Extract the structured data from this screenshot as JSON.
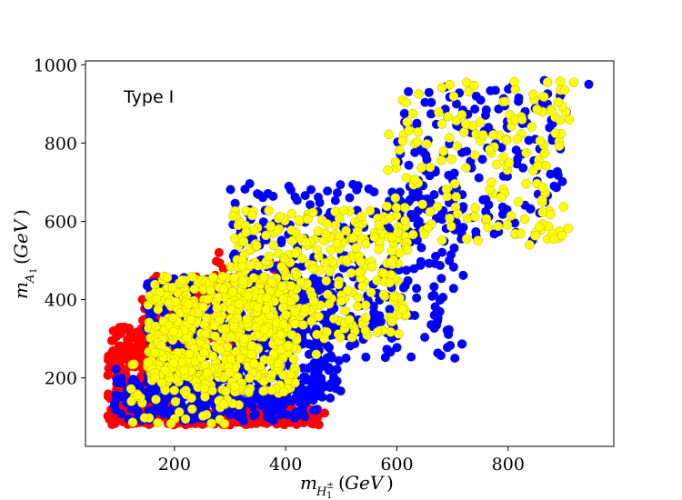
{
  "chart_data": {
    "type": "scatter",
    "annotation": "Type I",
    "xlabel": "m_{H₁^±} (GeV)",
    "ylabel": "m_{A₁} (GeV)",
    "xlim": [
      40,
      990
    ],
    "ylim": [
      25,
      1010
    ],
    "x_ticks": [
      200,
      400,
      600,
      800
    ],
    "y_ticks": [
      200,
      400,
      600,
      800,
      1000
    ],
    "grid": false,
    "legend": "none",
    "series": [
      {
        "color": "#ff0000",
        "regions": [
          {
            "x_range": [
              80,
              460
            ],
            "y_range": [
              80,
              130
            ],
            "n": 260
          },
          {
            "x_range": [
              80,
              160
            ],
            "y_range": [
              80,
              330
            ],
            "n": 200
          },
          {
            "x_range": [
              140,
              260
            ],
            "y_range": [
              200,
              460
            ],
            "n": 180
          },
          {
            "x_range": [
              250,
              420
            ],
            "y_range": [
              280,
              500
            ],
            "n": 60
          }
        ],
        "points": [
          [
            450,
            85
          ],
          [
            280,
            520
          ],
          [
            470,
            110
          ],
          [
            90,
            320
          ],
          [
            110,
            330
          ]
        ]
      },
      {
        "color": "#0000ff",
        "regions": [
          {
            "x_range": [
              90,
              460
            ],
            "y_range": [
              90,
              200
            ],
            "n": 260
          },
          {
            "x_range": [
              150,
              500
            ],
            "y_range": [
              140,
              460
            ],
            "n": 520
          },
          {
            "x_range": [
              300,
              720
            ],
            "y_range": [
              250,
              700
            ],
            "n": 320
          },
          {
            "x_range": [
              600,
              900
            ],
            "y_range": [
              550,
              950
            ],
            "n": 160
          }
        ],
        "points": [
          [
            95,
            222
          ],
          [
            865,
            960
          ],
          [
            945,
            950
          ],
          [
            880,
            850
          ],
          [
            590,
            480
          ],
          [
            755,
            655
          ],
          [
            560,
            340
          ],
          [
            430,
            300
          ],
          [
            700,
            605
          ],
          [
            905,
            880
          ]
        ]
      },
      {
        "color": "#ffff00",
        "regions": [
          {
            "x_range": [
              150,
              420
            ],
            "y_range": [
              160,
              460
            ],
            "n": 520
          },
          {
            "x_range": [
              300,
              620
            ],
            "y_range": [
              300,
              640
            ],
            "n": 320
          },
          {
            "x_range": [
              580,
              910
            ],
            "y_range": [
              540,
              960
            ],
            "n": 170
          },
          {
            "x_range": [
              120,
              320
            ],
            "y_range": [
              80,
              250
            ],
            "n": 60
          }
        ],
        "points": [
          [
            918,
            955
          ],
          [
            890,
            905
          ],
          [
            910,
            860
          ],
          [
            885,
            825
          ],
          [
            770,
            700
          ],
          [
            825,
            860
          ],
          [
            170,
            85
          ],
          [
            220,
            95
          ],
          [
            455,
            260
          ]
        ]
      }
    ]
  }
}
